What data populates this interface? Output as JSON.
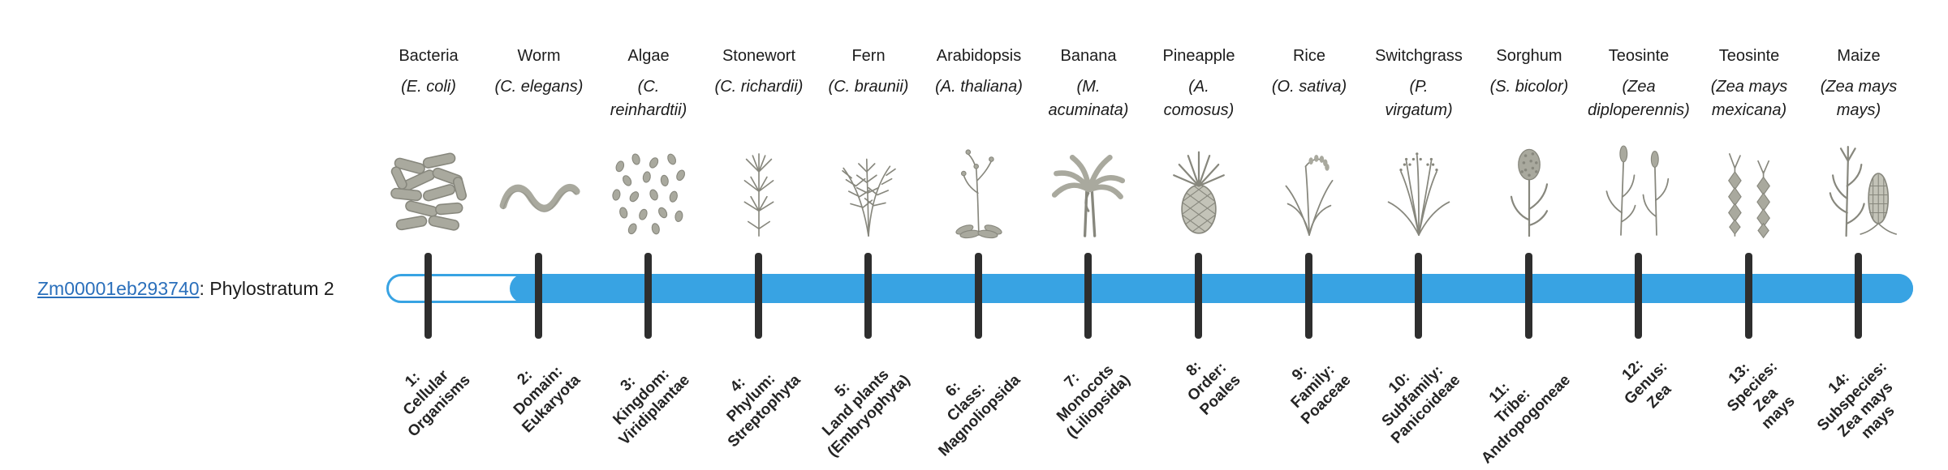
{
  "gene": {
    "id": "Zm00001eb293740",
    "suffix": ": Phylostratum 2",
    "phylostratum": 2
  },
  "colors": {
    "bar": "#38a3e3",
    "tick": "#2e2e2e",
    "link": "#2a6fbb",
    "text": "#1c1c1c",
    "icon": "#87877d",
    "icon_fill": "#a9a99e",
    "icon_light": "#c3c3b8"
  },
  "species": [
    {
      "name": "Bacteria",
      "sci_lines": [
        "(E. coli)"
      ],
      "icon": "bacteria-icon"
    },
    {
      "name": "Worm",
      "sci_lines": [
        "(C. elegans)"
      ],
      "icon": "worm-icon"
    },
    {
      "name": "Algae",
      "sci_lines": [
        "(C.",
        "reinhardtii)"
      ],
      "icon": "algae-icon"
    },
    {
      "name": "Stonewort",
      "sci_lines": [
        "(C. richardii)"
      ],
      "icon": "stonewort-icon"
    },
    {
      "name": "Fern",
      "sci_lines": [
        "(C. braunii)"
      ],
      "icon": "fern-icon"
    },
    {
      "name": "Arabidopsis",
      "sci_lines": [
        "(A. thaliana)"
      ],
      "icon": "arabidopsis-icon"
    },
    {
      "name": "Banana",
      "sci_lines": [
        "(M.",
        "acuminata)"
      ],
      "icon": "banana-icon"
    },
    {
      "name": "Pineapple",
      "sci_lines": [
        "(A.",
        "comosus)"
      ],
      "icon": "pineapple-icon"
    },
    {
      "name": "Rice",
      "sci_lines": [
        "(O. sativa)"
      ],
      "icon": "rice-icon"
    },
    {
      "name": "Switchgrass",
      "sci_lines": [
        "(P.",
        "virgatum)"
      ],
      "icon": "switchgrass-icon"
    },
    {
      "name": "Sorghum",
      "sci_lines": [
        "(S. bicolor)"
      ],
      "icon": "sorghum-icon"
    },
    {
      "name": "Teosinte",
      "sci_lines": [
        "(Zea",
        "diploperennis)"
      ],
      "icon": "teosinte-diploperennis-icon"
    },
    {
      "name": "Teosinte",
      "sci_lines": [
        "(Zea mays",
        "mexicana)"
      ],
      "icon": "teosinte-mexicana-icon"
    },
    {
      "name": "Maize",
      "sci_lines": [
        "(Zea mays",
        "mays)"
      ],
      "icon": "maize-icon"
    }
  ],
  "strata": [
    {
      "lines": [
        "1:",
        "Cellular",
        "Organisms"
      ]
    },
    {
      "lines": [
        "2:",
        "Domain:",
        "Eukaryota"
      ]
    },
    {
      "lines": [
        "3:",
        "Kingdom:",
        "Viridiplantae"
      ]
    },
    {
      "lines": [
        "4:",
        "Phylum:",
        "Streptophyta"
      ]
    },
    {
      "lines": [
        "5:",
        "Land plants",
        "(Embryophyta)"
      ]
    },
    {
      "lines": [
        "6:",
        "Class:",
        "Magnoliopsida"
      ]
    },
    {
      "lines": [
        "7:",
        "Monocots",
        "(Liliopsida)"
      ]
    },
    {
      "lines": [
        "8:",
        "Order:",
        "Poales"
      ]
    },
    {
      "lines": [
        "9:",
        "Family:",
        "Poaceae"
      ]
    },
    {
      "lines": [
        "10:",
        "Subfamily:",
        "Panicoideae"
      ]
    },
    {
      "lines": [
        "11:",
        "Tribe:",
        "Andropogoneae"
      ]
    },
    {
      "lines": [
        "12:",
        "Genus:",
        "Zea"
      ]
    },
    {
      "lines": [
        "13:",
        "Species:",
        "Zea",
        "mays"
      ]
    },
    {
      "lines": [
        "14:",
        "Subspecies:",
        "Zea mays",
        "mays"
      ]
    }
  ]
}
